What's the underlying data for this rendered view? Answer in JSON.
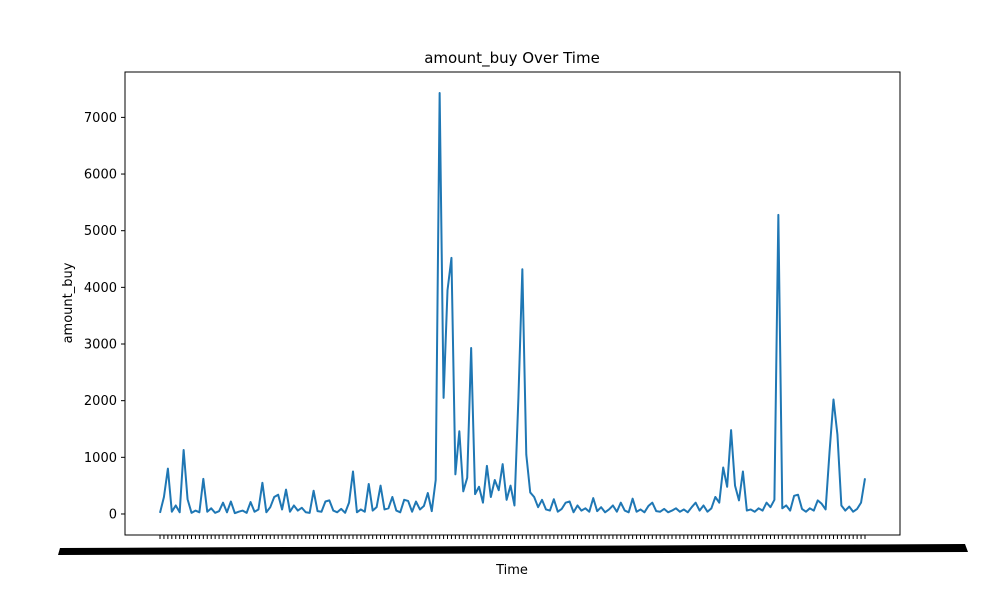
{
  "chart_data": {
    "type": "line",
    "title": "amount_buy Over Time",
    "x_label": "Time",
    "y_label": "amount_buy",
    "color": "#1f77b4",
    "ylim": [
      -371,
      7801
    ],
    "yticks": [
      0,
      1000,
      2000,
      3000,
      4000,
      5000,
      6000,
      7000
    ],
    "categories": [
      null,
      null,
      null,
      null,
      null,
      null,
      null,
      null,
      null,
      null,
      null,
      null,
      null,
      null,
      null,
      null,
      null,
      null,
      null,
      null,
      null,
      null,
      null,
      null,
      null,
      null,
      null,
      null,
      null,
      null,
      null,
      null,
      null,
      null,
      null,
      null,
      null,
      null,
      null,
      null,
      null,
      null,
      null,
      null,
      null,
      null,
      null,
      null,
      null,
      null,
      null,
      null,
      null,
      null,
      null,
      null,
      null,
      null,
      null,
      null,
      null,
      null,
      null,
      null,
      null,
      null,
      null,
      null,
      null,
      null,
      null,
      null,
      null,
      null,
      null,
      null,
      null,
      null,
      null,
      null,
      null,
      null,
      null,
      null,
      null,
      null,
      null,
      null,
      null,
      null,
      null,
      null,
      null,
      null,
      null,
      null,
      null,
      null,
      null,
      null,
      null,
      null,
      null,
      null,
      null,
      null,
      null,
      null,
      null,
      null,
      null,
      null,
      null,
      null,
      null,
      null,
      null,
      null,
      null,
      null,
      null,
      null,
      null,
      null,
      null,
      null,
      null,
      null,
      null,
      null,
      null,
      null,
      null,
      null,
      null,
      null,
      null,
      null,
      null,
      null,
      null,
      null,
      null,
      null,
      null,
      null,
      null,
      null,
      null,
      null,
      null,
      null,
      null,
      null,
      null,
      null,
      null,
      null,
      null,
      null,
      null,
      null,
      null,
      null,
      null,
      null,
      null,
      null,
      null,
      null,
      null,
      null,
      null,
      null,
      null,
      null,
      null,
      null,
      null,
      null
    ],
    "values": [
      20,
      300,
      800,
      40,
      150,
      30,
      1130,
      260,
      20,
      60,
      30,
      620,
      40,
      100,
      20,
      50,
      200,
      30,
      220,
      15,
      40,
      60,
      20,
      210,
      40,
      80,
      550,
      30,
      120,
      300,
      340,
      80,
      430,
      40,
      150,
      60,
      110,
      30,
      20,
      410,
      50,
      40,
      220,
      240,
      60,
      30,
      90,
      20,
      200,
      750,
      30,
      80,
      40,
      530,
      60,
      120,
      500,
      80,
      100,
      300,
      60,
      30,
      250,
      230,
      40,
      220,
      80,
      140,
      370,
      50,
      600,
      7430,
      2050,
      3950,
      4520,
      700,
      1460,
      400,
      640,
      2930,
      350,
      480,
      200,
      850,
      300,
      600,
      420,
      880,
      250,
      500,
      150,
      2050,
      4320,
      1050,
      380,
      300,
      120,
      250,
      80,
      60,
      260,
      40,
      90,
      200,
      220,
      30,
      150,
      60,
      100,
      40,
      280,
      50,
      120,
      30,
      80,
      150,
      40,
      200,
      60,
      30,
      270,
      40,
      80,
      30,
      140,
      200,
      50,
      40,
      90,
      30,
      60,
      100,
      40,
      80,
      30,
      120,
      200,
      60,
      150,
      40,
      100,
      300,
      200,
      820,
      480,
      1480,
      500,
      240,
      750,
      60,
      80,
      40,
      100,
      60,
      200,
      120,
      250,
      5280,
      100,
      150,
      60,
      320,
      340,
      90,
      40,
      100,
      60,
      240,
      180,
      80,
      1100,
      2020,
      1400,
      150,
      60,
      130,
      40,
      90,
      200,
      630
    ]
  }
}
